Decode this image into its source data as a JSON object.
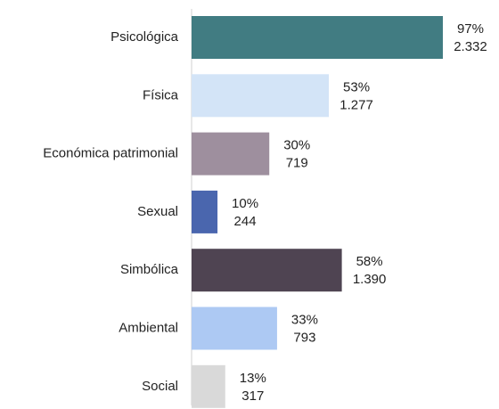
{
  "chart_data": {
    "type": "bar",
    "orientation": "horizontal",
    "categories": [
      "Psicológica",
      "Física",
      "Económica patrimonial",
      "Sexual",
      "Simbólica",
      "Ambiental",
      "Social"
    ],
    "values": [
      97,
      53,
      30,
      10,
      58,
      33,
      13
    ],
    "value_labels": [
      "97%",
      "53%",
      "30%",
      "10%",
      "58%",
      "33%",
      "13%"
    ],
    "counts": [
      2332,
      1277,
      719,
      244,
      1390,
      793,
      317
    ],
    "count_labels": [
      "2.332",
      "1.277",
      "719",
      "244",
      "1.390",
      "793",
      "317"
    ],
    "colors": [
      "#417c82",
      "#d3e4f7",
      "#9e8f9e",
      "#4a66ae",
      "#4f4452",
      "#adc9f3",
      "#d9d9d9"
    ]
  }
}
